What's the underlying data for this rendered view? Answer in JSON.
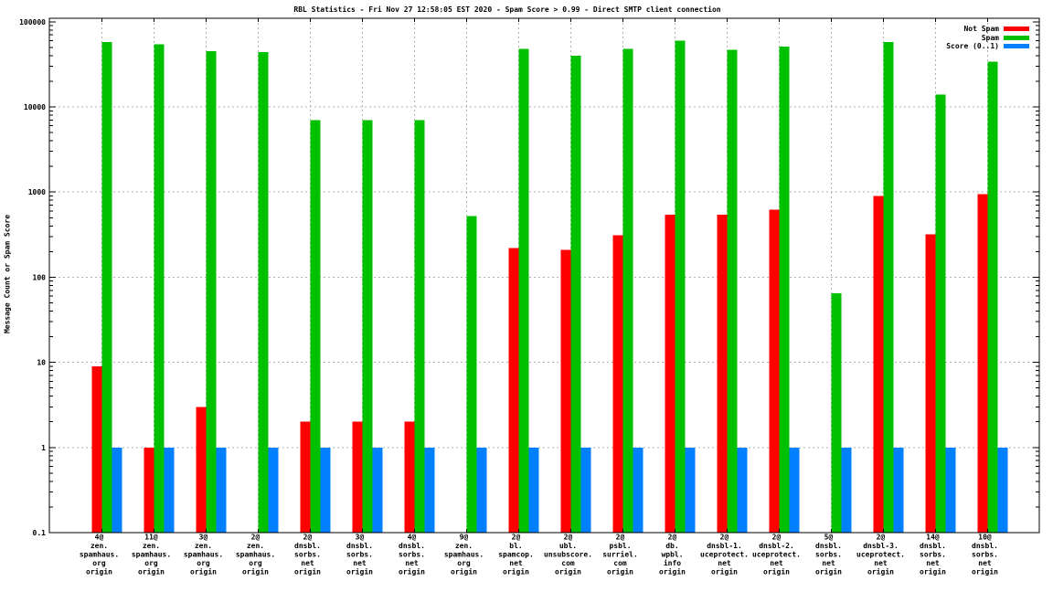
{
  "chart_data": {
    "type": "bar",
    "title": "RBL Statistics - Fri Nov 27 12:58:05 EST 2020 - Spam Score > 0.99 - Direct SMTP client connection",
    "ylabel": "Message Count or Spam Score",
    "xlabel": "",
    "y_scale": "log",
    "ylim": [
      0.1,
      100000
    ],
    "grid": true,
    "legend_position": "top-right",
    "y_ticks": [
      {
        "label": "100000",
        "value": 100000
      },
      {
        "label": "10000",
        "value": 10000
      },
      {
        "label": "1000",
        "value": 1000
      },
      {
        "label": "100",
        "value": 100
      },
      {
        "label": "10",
        "value": 10
      },
      {
        "label": "1",
        "value": 1
      },
      {
        "label": "0.1",
        "value": 0.1
      }
    ],
    "legend": [
      {
        "name": "Not Spam",
        "color": "#ff0000"
      },
      {
        "name": "Spam",
        "color": "#00c000"
      },
      {
        "name": "Score (0..1)",
        "color": "#0080ff"
      }
    ],
    "categories": [
      [
        "4@",
        "zen.",
        "spamhaus.",
        "org",
        "origin"
      ],
      [
        "11@",
        "zen.",
        "spamhaus.",
        "org",
        "origin"
      ],
      [
        "3@",
        "zen.",
        "spamhaus.",
        "org",
        "origin"
      ],
      [
        "2@",
        "zen.",
        "spamhaus.",
        "org",
        "origin"
      ],
      [
        "2@",
        "dnsbl.",
        "sorbs.",
        "net",
        "origin"
      ],
      [
        "3@",
        "dnsbl.",
        "sorbs.",
        "net",
        "origin"
      ],
      [
        "4@",
        "dnsbl.",
        "sorbs.",
        "net",
        "origin"
      ],
      [
        "9@",
        "zen.",
        "spamhaus.",
        "org",
        "origin"
      ],
      [
        "2@",
        "bl.",
        "spamcop.",
        "net",
        "origin"
      ],
      [
        "2@",
        "ubl.",
        "unsubscore.",
        "com",
        "origin"
      ],
      [
        "2@",
        "psbl.",
        "surriel.",
        "com",
        "origin"
      ],
      [
        "2@",
        "db.",
        "wpbl.",
        "info",
        "origin"
      ],
      [
        "2@",
        "dnsbl-1.",
        "uceprotect.",
        "net",
        "origin"
      ],
      [
        "2@",
        "dnsbl-2.",
        "uceprotect.",
        "net",
        "origin"
      ],
      [
        "5@",
        "dnsbl.",
        "sorbs.",
        "net",
        "origin"
      ],
      [
        "2@",
        "dnsbl-3.",
        "uceprotect.",
        "net",
        "origin"
      ],
      [
        "14@",
        "dnsbl.",
        "sorbs.",
        "net",
        "origin"
      ],
      [
        "10@",
        "dnsbl.",
        "sorbs.",
        "net",
        "origin"
      ]
    ],
    "series": [
      {
        "name": "Not Spam",
        "color": "#ff0000",
        "values": [
          9,
          1,
          3,
          0,
          2,
          2,
          2,
          0,
          220,
          210,
          310,
          540,
          540,
          620,
          0,
          900,
          320,
          950
        ]
      },
      {
        "name": "Spam",
        "color": "#00c000",
        "values": [
          58000,
          54000,
          45000,
          44000,
          7000,
          7000,
          7000,
          520,
          48000,
          40000,
          48000,
          60000,
          47000,
          51000,
          65,
          58000,
          14000,
          34000
        ]
      },
      {
        "name": "Score (0..1)",
        "color": "#0080ff",
        "values": [
          1,
          1,
          1,
          1,
          1,
          1,
          1,
          1,
          1,
          1,
          1,
          1,
          1,
          1,
          1,
          1,
          1,
          1
        ]
      }
    ]
  }
}
